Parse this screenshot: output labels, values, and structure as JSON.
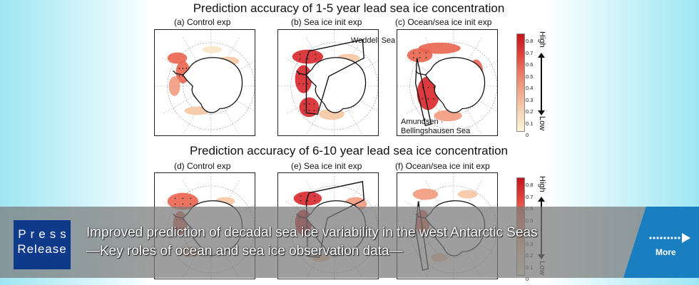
{
  "figure": {
    "row1_title": "Prediction accuracy of 1-5 year lead sea ice concentration",
    "row2_title": "Prediction accuracy of 6-10 year lead sea ice concentration",
    "panels": [
      {
        "label": "(a) Control exp"
      },
      {
        "label": "(b) Sea ice init exp"
      },
      {
        "label": "(c) Ocean/sea ice init exp"
      },
      {
        "label": "(d) Control exp"
      },
      {
        "label": "(e) Sea ice init exp"
      },
      {
        "label": "(f) Ocean/sea ice init exp"
      }
    ],
    "annotations": {
      "weddell": "Weddell Sea",
      "amundsen_line1": "Amundsen ·",
      "amundsen_line2": "Bellingshausen Sea"
    },
    "colorbar": {
      "ticks": [
        "0.8",
        "0.7",
        "0.6",
        "0.5",
        "0.4",
        "0.3",
        "0.2",
        "0.1",
        "0"
      ],
      "high_label": "High",
      "low_label": "Low"
    }
  },
  "banner": {
    "press_line1": "Press",
    "press_line2": "Release",
    "headline_line1": "Improved prediction of decadal sea ice variability in the west Antarctic Seas",
    "headline_line2": "―Key roles of ocean and sea ice observation data―",
    "more_label": "More"
  },
  "colors": {
    "press_box": "#0f3a8c",
    "more_button": "#1a7fc0",
    "banner_overlay": "#787878"
  }
}
